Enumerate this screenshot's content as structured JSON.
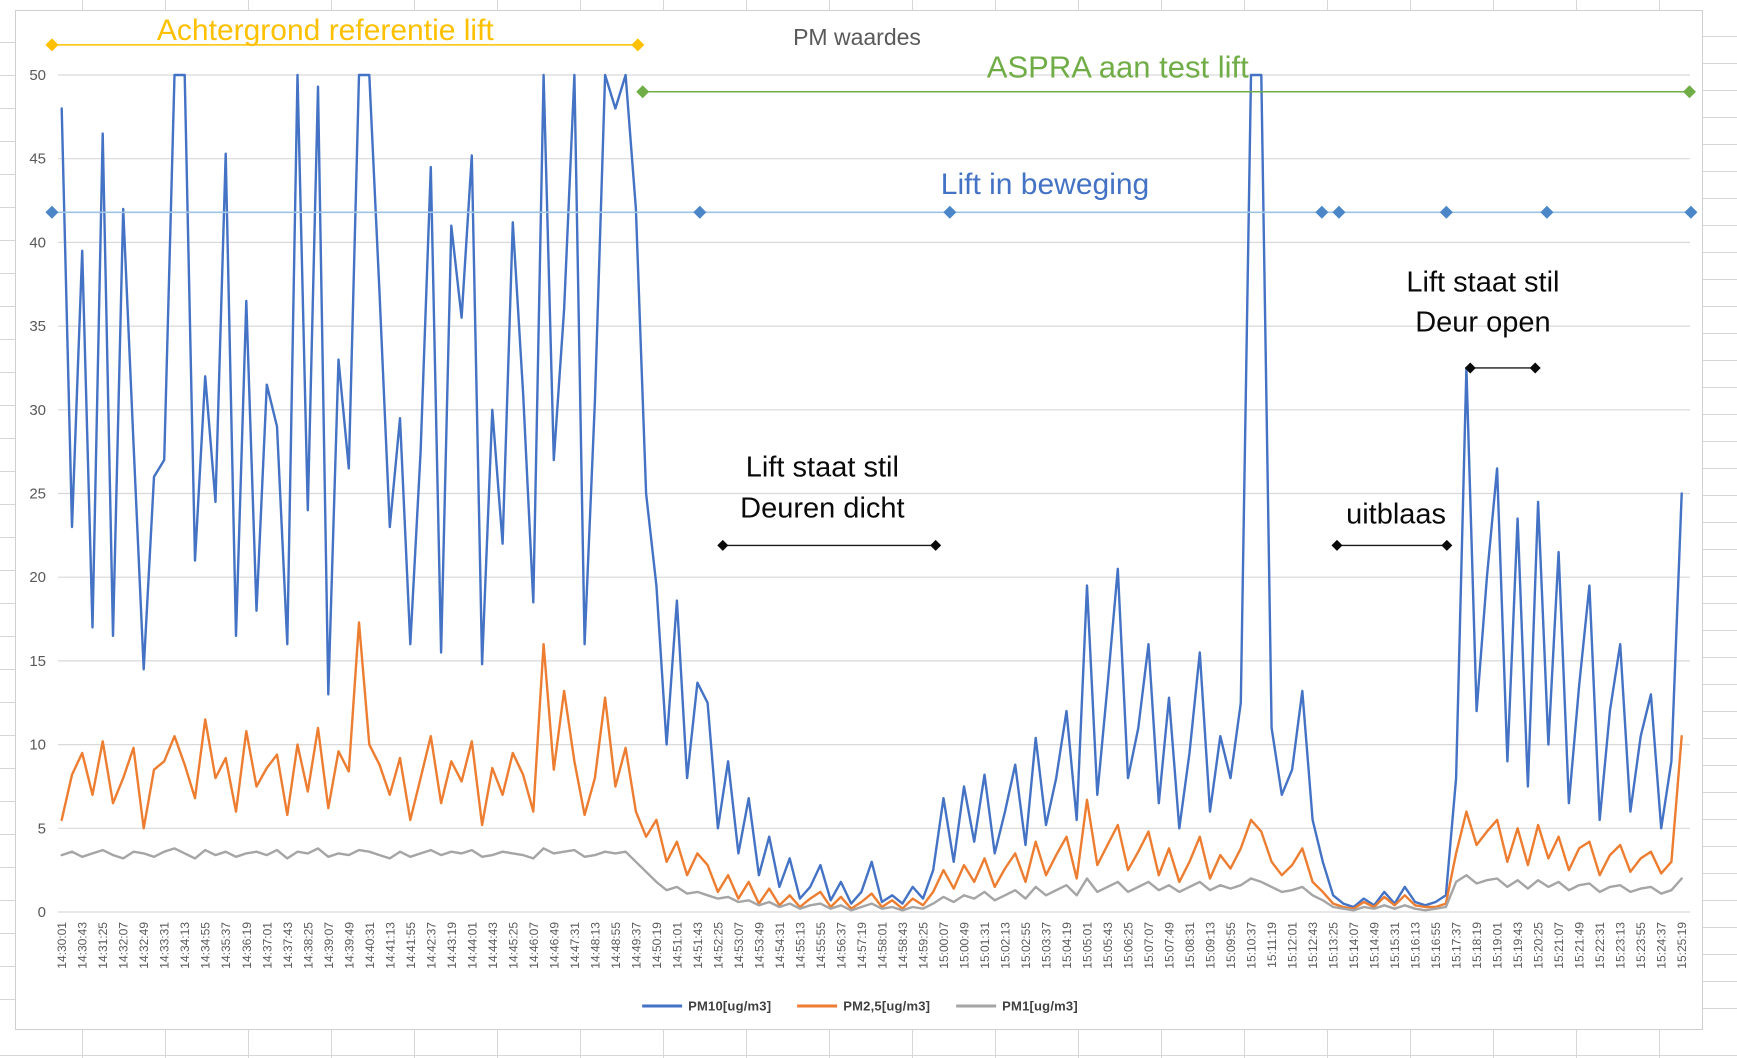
{
  "title": "PM waardes",
  "legend": {
    "items": [
      {
        "label": "PM10[ug/m3]",
        "color": "#4472C4"
      },
      {
        "label": "PM2,5[ug/m3]",
        "color": "#ED7D31"
      },
      {
        "label": "PM1[ug/m3]",
        "color": "#A5A5A5"
      }
    ]
  },
  "chart_data": {
    "type": "line",
    "title": "PM waardes",
    "ylabel": "",
    "xlabel": "",
    "ylim": [
      0,
      50
    ],
    "grid": "horizontal",
    "legend_position": "bottom",
    "y_ticks": [
      0,
      5,
      10,
      15,
      20,
      25,
      30,
      35,
      40,
      45,
      50
    ],
    "x_tick_interval_seconds": 42,
    "sample_interval_seconds": 21,
    "x_tick_labels": [
      "14:30:01",
      "14:30:43",
      "14:31:25",
      "14:32:07",
      "14:32:49",
      "14:33:31",
      "14:34:13",
      "14:34:55",
      "14:35:37",
      "14:36:19",
      "14:37:01",
      "14:37:43",
      "14:38:25",
      "14:39:07",
      "14:39:49",
      "14:40:31",
      "14:41:13",
      "14:41:55",
      "14:42:37",
      "14:43:19",
      "14:44:01",
      "14:44:43",
      "14:45:25",
      "14:46:07",
      "14:46:49",
      "14:47:31",
      "14:48:13",
      "14:48:55",
      "14:49:37",
      "14:50:19",
      "14:51:01",
      "14:51:43",
      "14:52:25",
      "14:53:07",
      "14:53:49",
      "14:54:31",
      "14:55:13",
      "14:55:55",
      "14:56:37",
      "14:57:19",
      "14:58:01",
      "14:58:43",
      "14:59:25",
      "15:00:07",
      "15:00:49",
      "15:01:31",
      "15:02:13",
      "15:02:55",
      "15:03:37",
      "15:04:19",
      "15:05:01",
      "15:05:43",
      "15:06:25",
      "15:07:07",
      "15:07:49",
      "15:08:31",
      "15:09:13",
      "15:09:55",
      "15:10:37",
      "15:11:19",
      "15:12:01",
      "15:12:43",
      "15:13:25",
      "15:14:07",
      "15:14:49",
      "15:15:31",
      "15:16:13",
      "15:16:55",
      "15:17:37",
      "15:18:19",
      "15:19:01",
      "15:19:43",
      "15:20:25",
      "15:21:07",
      "15:21:49",
      "15:22:31",
      "15:23:13",
      "15:23:55",
      "15:24:37",
      "15:25:19"
    ],
    "series": [
      {
        "name": "PM10[ug/m3]",
        "color": "#4472C4",
        "values": [
          48,
          23,
          39.5,
          17,
          46.5,
          16.5,
          42,
          28,
          14.5,
          26,
          27,
          50,
          50,
          21,
          32,
          24.5,
          45.3,
          16.5,
          36.5,
          18,
          31.5,
          29,
          16,
          50,
          24,
          49.3,
          13,
          33,
          26.5,
          50,
          50,
          37,
          23,
          29.5,
          16,
          27.5,
          44.5,
          15.5,
          41,
          35.5,
          45.2,
          14.8,
          30,
          22,
          41.2,
          31,
          18.5,
          50,
          27,
          36,
          50,
          16,
          30.5,
          50,
          48,
          50,
          42,
          25,
          19.5,
          10,
          18.6,
          8,
          13.7,
          12.5,
          5,
          9,
          3.5,
          6.8,
          2.2,
          4.5,
          1.5,
          3.2,
          0.8,
          1.5,
          2.8,
          0.7,
          1.8,
          0.5,
          1.2,
          3.0,
          0.6,
          1.0,
          0.5,
          1.5,
          0.8,
          2.5,
          6.8,
          3.0,
          7.5,
          4.2,
          8.2,
          3.5,
          6.0,
          8.8,
          4.0,
          10.4,
          5.2,
          8.0,
          12.0,
          5.5,
          19.5,
          7.0,
          13.5,
          20.5,
          8.0,
          11.0,
          16.0,
          6.5,
          12.8,
          5.0,
          9.5,
          15.5,
          6.0,
          10.5,
          8.0,
          12.5,
          50,
          50,
          11,
          7,
          8.5,
          13.2,
          5.5,
          3.0,
          1.0,
          0.5,
          0.3,
          0.8,
          0.4,
          1.2,
          0.5,
          1.5,
          0.6,
          0.4,
          0.6,
          1.0,
          8.0,
          32.5,
          12.0,
          20.0,
          26.5,
          9.0,
          23.5,
          7.5,
          24.5,
          10.0,
          21.5,
          6.5,
          13.5,
          19.5,
          5.5,
          12.0,
          16.0,
          6.0,
          10.5,
          13.0,
          5.0,
          9.0,
          25.0
        ]
      },
      {
        "name": "PM2,5[ug/m3]",
        "color": "#ED7D31",
        "values": [
          5.5,
          8.2,
          9.5,
          7.0,
          10.2,
          6.5,
          8.0,
          9.8,
          5.0,
          8.5,
          9.0,
          10.5,
          8.8,
          6.8,
          11.5,
          8.0,
          9.2,
          6.0,
          10.8,
          7.5,
          8.6,
          9.4,
          5.8,
          10.0,
          7.2,
          11.0,
          6.2,
          9.6,
          8.4,
          17.3,
          10.0,
          8.8,
          7.0,
          9.2,
          5.5,
          8.0,
          10.5,
          6.5,
          9.0,
          7.8,
          10.2,
          5.2,
          8.6,
          7.0,
          9.5,
          8.2,
          6.0,
          16.0,
          8.5,
          13.2,
          9.0,
          5.8,
          8.0,
          12.8,
          7.5,
          9.8,
          6.0,
          4.5,
          5.5,
          3.0,
          4.2,
          2.2,
          3.5,
          2.8,
          1.2,
          2.2,
          0.8,
          1.8,
          0.5,
          1.4,
          0.4,
          1.0,
          0.3,
          0.8,
          1.2,
          0.3,
          0.9,
          0.2,
          0.6,
          1.1,
          0.3,
          0.7,
          0.2,
          0.8,
          0.4,
          1.2,
          2.5,
          1.4,
          2.8,
          1.8,
          3.2,
          1.5,
          2.6,
          3.5,
          1.8,
          4.2,
          2.2,
          3.4,
          4.5,
          2.0,
          6.7,
          2.8,
          4.0,
          5.2,
          2.5,
          3.6,
          4.8,
          2.2,
          3.8,
          1.8,
          3.0,
          4.5,
          2.0,
          3.4,
          2.6,
          3.8,
          5.5,
          4.8,
          3.0,
          2.2,
          2.8,
          3.8,
          1.8,
          1.2,
          0.5,
          0.3,
          0.2,
          0.6,
          0.3,
          0.9,
          0.4,
          1.0,
          0.4,
          0.3,
          0.3,
          0.5,
          3.5,
          6.0,
          4.0,
          4.8,
          5.5,
          3.0,
          5.0,
          2.8,
          5.2,
          3.2,
          4.5,
          2.5,
          3.8,
          4.2,
          2.2,
          3.4,
          4.0,
          2.4,
          3.2,
          3.6,
          2.3,
          3.0,
          10.5
        ]
      },
      {
        "name": "PM1[ug/m3]",
        "color": "#A5A5A5",
        "values": [
          3.4,
          3.6,
          3.3,
          3.5,
          3.7,
          3.4,
          3.2,
          3.6,
          3.5,
          3.3,
          3.6,
          3.8,
          3.5,
          3.2,
          3.7,
          3.4,
          3.6,
          3.3,
          3.5,
          3.6,
          3.4,
          3.7,
          3.2,
          3.6,
          3.5,
          3.8,
          3.3,
          3.5,
          3.4,
          3.7,
          3.6,
          3.4,
          3.2,
          3.6,
          3.3,
          3.5,
          3.7,
          3.4,
          3.6,
          3.5,
          3.7,
          3.3,
          3.4,
          3.6,
          3.5,
          3.4,
          3.2,
          3.8,
          3.5,
          3.6,
          3.7,
          3.3,
          3.4,
          3.6,
          3.5,
          3.6,
          3.0,
          2.4,
          1.8,
          1.3,
          1.5,
          1.1,
          1.2,
          1.0,
          0.8,
          0.9,
          0.6,
          0.7,
          0.4,
          0.6,
          0.3,
          0.5,
          0.2,
          0.4,
          0.5,
          0.2,
          0.4,
          0.1,
          0.3,
          0.5,
          0.2,
          0.3,
          0.1,
          0.3,
          0.2,
          0.5,
          0.9,
          0.6,
          1.0,
          0.8,
          1.2,
          0.7,
          1.0,
          1.3,
          0.8,
          1.5,
          1.0,
          1.3,
          1.6,
          1.0,
          2.0,
          1.2,
          1.5,
          1.8,
          1.2,
          1.5,
          1.8,
          1.3,
          1.6,
          1.2,
          1.5,
          1.8,
          1.3,
          1.6,
          1.4,
          1.6,
          2.0,
          1.8,
          1.5,
          1.2,
          1.3,
          1.5,
          1.0,
          0.7,
          0.3,
          0.2,
          0.1,
          0.3,
          0.2,
          0.4,
          0.2,
          0.4,
          0.2,
          0.1,
          0.2,
          0.3,
          1.8,
          2.2,
          1.7,
          1.9,
          2.0,
          1.5,
          1.9,
          1.4,
          1.9,
          1.5,
          1.8,
          1.3,
          1.6,
          1.7,
          1.2,
          1.5,
          1.6,
          1.2,
          1.4,
          1.5,
          1.1,
          1.3,
          2.0
        ]
      }
    ],
    "annotations": {
      "phases": [
        {
          "id": "background",
          "label": "Achtergrond referentie lift",
          "text_color": "#FFC000",
          "line_color": "#FFC000",
          "line_v": 51.8,
          "t_start": -20,
          "t_end": 1180,
          "diamond_t": [
            -20,
            1180
          ],
          "label_t": 540,
          "label_v": 52.6
        },
        {
          "id": "aspra",
          "label": "ASPRA aan test lift",
          "text_color": "#70AD47",
          "line_color": "#70AD47",
          "line_v": 49.0,
          "t_start": 1190,
          "t_end": 3334,
          "diamond_t": [
            1190,
            3334
          ],
          "label_t": 2163,
          "label_v": 50.5
        },
        {
          "id": "moving",
          "label": "Lift in beweging",
          "text_color": "#4472C4",
          "line_color": "#9DC3E6",
          "diamond_color": "#4A86C8",
          "line_v": 41.8,
          "t_start": -20,
          "t_end": 3337,
          "diamond_t": [
            -20,
            1307,
            1819,
            2581,
            2616,
            2836,
            3042,
            3337
          ],
          "label_t": 2014,
          "label_v": 43.4
        }
      ],
      "ranges": [
        {
          "id": "still-closed",
          "label_lines": [
            "Lift staat stil",
            "Deuren dicht"
          ],
          "arrow_v": 21.9,
          "t_start": 1354,
          "t_end": 1790,
          "label_t": 1558,
          "label_v": 25.3
        },
        {
          "id": "uitblaas",
          "label_lines": [
            "uitblaas"
          ],
          "arrow_v": 21.9,
          "t_start": 2612,
          "t_end": 2837,
          "label_t": 2733,
          "label_v": 23.7
        },
        {
          "id": "still-open",
          "label_lines": [
            "Lift staat stil",
            "Deur open"
          ],
          "arrow_v": 32.5,
          "t_start": 2885,
          "t_end": 3018,
          "label_t": 2911,
          "label_v": 36.4
        }
      ]
    }
  }
}
